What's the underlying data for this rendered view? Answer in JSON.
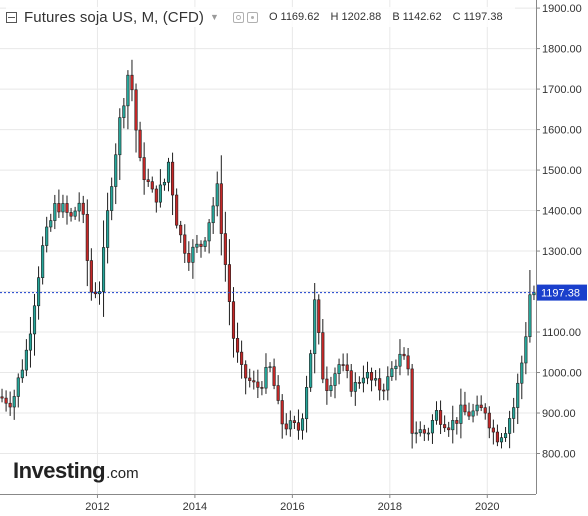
{
  "header": {
    "title": "Futures soja US, M, (CFD)",
    "open_label": "O",
    "open_value": "1169.62",
    "high_label": "H",
    "high_value": "1202.88",
    "low_label": "B",
    "low_value": "1142.62",
    "close_label": "C",
    "close_value": "1197.38"
  },
  "logo": {
    "main": "Investing",
    "sub": ".com"
  },
  "colors": {
    "up": "#26a69a",
    "down": "#c62828",
    "price_line": "#1a3fcc",
    "grid": "#e8e8e8",
    "axis_text": "#333333"
  },
  "chart_data": {
    "type": "candlestick",
    "interval": "monthly",
    "title": "Futures soja US, M, (CFD)",
    "x_axis": {
      "tick_labels": [
        "2012",
        "2014",
        "2016",
        "2018",
        "2020"
      ],
      "start": 2010.0,
      "end": 2021.0
    },
    "y_axis": {
      "position": "right",
      "range": [
        700,
        1920
      ],
      "tick_labels": [
        "800.00",
        "900.00",
        "1000.00",
        "1100.00",
        "1200.00",
        "1300.00",
        "1400.00",
        "1500.00",
        "1600.00",
        "1700.00",
        "1800.00",
        "1900.00"
      ],
      "ticks": [
        800,
        900,
        1000,
        1100,
        1200,
        1300,
        1400,
        1500,
        1600,
        1700,
        1800,
        1900
      ]
    },
    "grid": true,
    "current_price": {
      "value": 1197.38,
      "label": "1197.38"
    },
    "anchors": [
      {
        "t": 2010.0,
        "p": 940
      },
      {
        "t": 2010.3,
        "p": 930
      },
      {
        "t": 2010.6,
        "p": 1060
      },
      {
        "t": 2010.9,
        "p": 1300
      },
      {
        "t": 2011.2,
        "p": 1420
      },
      {
        "t": 2011.5,
        "p": 1380
      },
      {
        "t": 2011.7,
        "p": 1430
      },
      {
        "t": 2011.9,
        "p": 1200
      },
      {
        "t": 2012.1,
        "p": 1210
      },
      {
        "t": 2012.3,
        "p": 1450
      },
      {
        "t": 2012.5,
        "p": 1620
      },
      {
        "t": 2012.7,
        "p": 1760
      },
      {
        "t": 2012.9,
        "p": 1520
      },
      {
        "t": 2013.2,
        "p": 1430
      },
      {
        "t": 2013.4,
        "p": 1460
      },
      {
        "t": 2013.5,
        "p": 1520
      },
      {
        "t": 2013.7,
        "p": 1350
      },
      {
        "t": 2013.9,
        "p": 1290
      },
      {
        "t": 2014.2,
        "p": 1320
      },
      {
        "t": 2014.5,
        "p": 1450
      },
      {
        "t": 2014.7,
        "p": 1230
      },
      {
        "t": 2014.85,
        "p": 1070
      },
      {
        "t": 2015.0,
        "p": 1000
      },
      {
        "t": 2015.3,
        "p": 960
      },
      {
        "t": 2015.6,
        "p": 1010
      },
      {
        "t": 2015.8,
        "p": 880
      },
      {
        "t": 2016.0,
        "p": 865
      },
      {
        "t": 2016.2,
        "p": 860
      },
      {
        "t": 2016.4,
        "p": 1030
      },
      {
        "t": 2016.5,
        "p": 1170
      },
      {
        "t": 2016.7,
        "p": 960
      },
      {
        "t": 2017.0,
        "p": 1020
      },
      {
        "t": 2017.3,
        "p": 960
      },
      {
        "t": 2017.5,
        "p": 1000
      },
      {
        "t": 2017.8,
        "p": 960
      },
      {
        "t": 2018.0,
        "p": 980
      },
      {
        "t": 2018.2,
        "p": 1040
      },
      {
        "t": 2018.4,
        "p": 1020
      },
      {
        "t": 2018.5,
        "p": 860
      },
      {
        "t": 2018.8,
        "p": 850
      },
      {
        "t": 2019.0,
        "p": 900
      },
      {
        "t": 2019.3,
        "p": 870
      },
      {
        "t": 2019.5,
        "p": 900
      },
      {
        "t": 2019.8,
        "p": 900
      },
      {
        "t": 2020.0,
        "p": 910
      },
      {
        "t": 2020.2,
        "p": 840
      },
      {
        "t": 2020.4,
        "p": 860
      },
      {
        "t": 2020.6,
        "p": 920
      },
      {
        "t": 2020.8,
        "p": 1060
      },
      {
        "t": 2020.92,
        "p": 1197.38
      }
    ]
  }
}
